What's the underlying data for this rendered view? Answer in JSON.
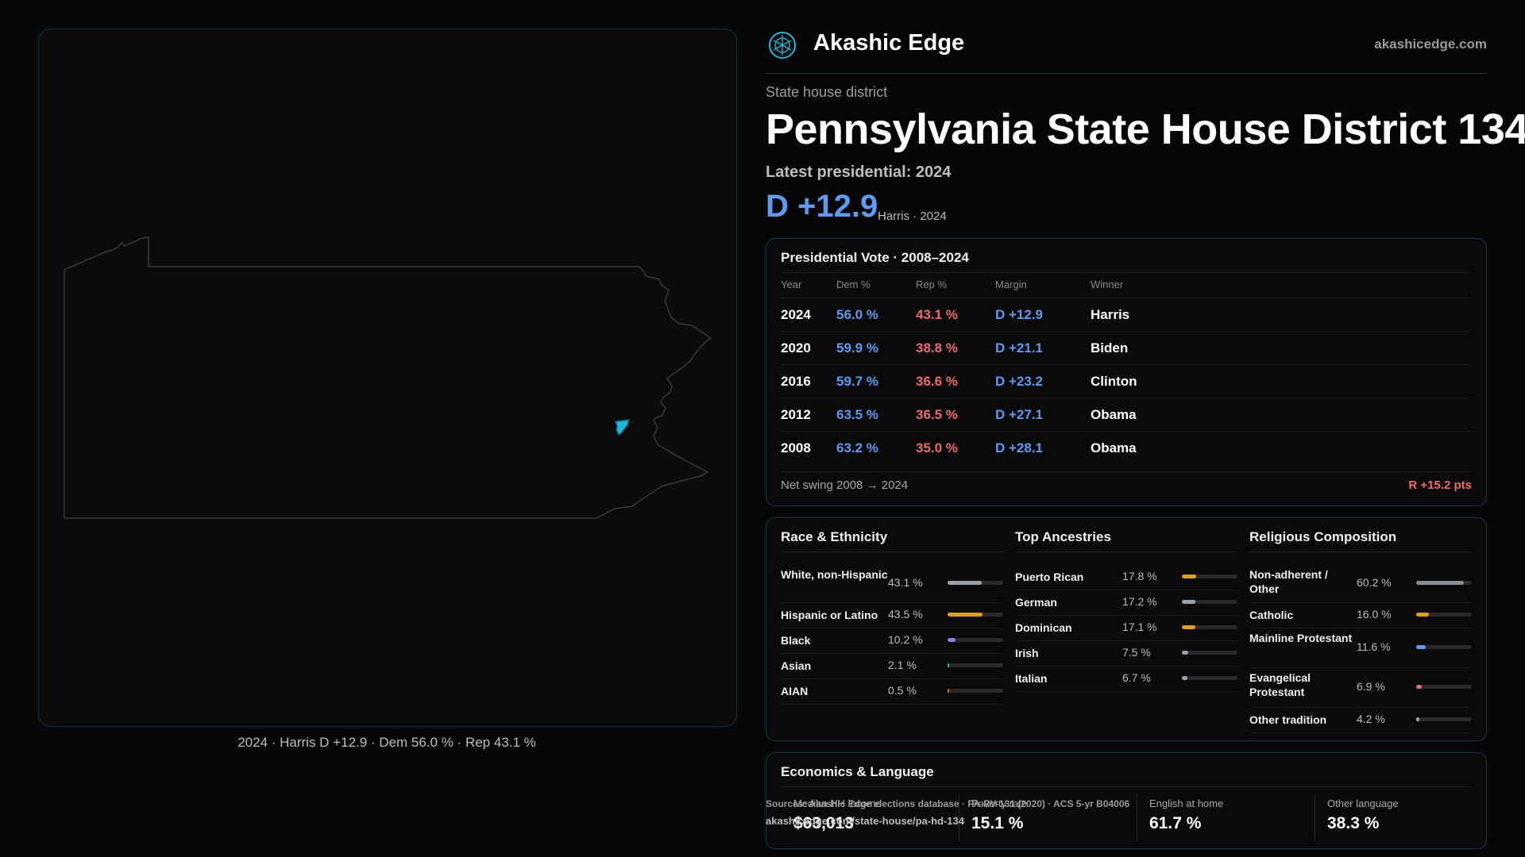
{
  "brand": {
    "name": "Akashic Edge",
    "url": "akashicedge.com",
    "logo_icon": "compass-globe-icon"
  },
  "header": {
    "kicker": "State house district",
    "title": "Pennsylvania State House District 134",
    "latest": "Latest presidential: 2024",
    "margin": "D +12.9",
    "margin_sub": "Harris · 2024"
  },
  "map": {
    "caption": "2024 · Harris D +12.9 · Dem 56.0 % · Rep 43.1 %",
    "highlight_color": "#1fb8d8",
    "outline_color": "#3a3a3a",
    "marker_icon": "district-marker-icon"
  },
  "vote": {
    "title": "Presidential Vote · 2008–2024",
    "headers": [
      "Year",
      "Dem %",
      "Rep %",
      "Margin",
      "Winner"
    ],
    "rows": [
      {
        "year": "2024",
        "dem": "56.0 %",
        "rep": "43.1 %",
        "margin": "D +12.9",
        "winner": "Harris"
      },
      {
        "year": "2020",
        "dem": "59.9 %",
        "rep": "38.8 %",
        "margin": "D +21.1",
        "winner": "Biden"
      },
      {
        "year": "2016",
        "dem": "59.7 %",
        "rep": "36.6 %",
        "margin": "D +23.2",
        "winner": "Clinton"
      },
      {
        "year": "2012",
        "dem": "63.5 %",
        "rep": "36.5 %",
        "margin": "D +27.1",
        "winner": "Obama"
      },
      {
        "year": "2008",
        "dem": "63.2 %",
        "rep": "35.0 %",
        "margin": "D +28.1",
        "winner": "Obama"
      }
    ],
    "net_label": "Net swing 2008 → 2024",
    "net_value": "R +15.2 pts"
  },
  "race": {
    "title": "Race & Ethnicity",
    "items": [
      {
        "label": "White, non-Hispanic",
        "value": "43.1 %",
        "share": 0.431,
        "color": "#9aa3ad"
      },
      {
        "label": "Hispanic or Latino",
        "value": "43.5 %",
        "share": 0.435,
        "color": "#e0a21c"
      },
      {
        "label": "Black",
        "value": "10.2 %",
        "share": 0.102,
        "color": "#8b7cf0"
      },
      {
        "label": "Asian",
        "value": "2.1 %",
        "share": 0.021,
        "color": "#2fc7a3"
      },
      {
        "label": "AIAN",
        "value": "0.5 %",
        "share": 0.005,
        "color": "#d06a3a"
      }
    ]
  },
  "ancestry": {
    "title": "Top Ancestries",
    "items": [
      {
        "label": "Puerto Rican",
        "value": "17.8 %",
        "share": 0.178,
        "color": "#e0a21c"
      },
      {
        "label": "German",
        "value": "17.2 %",
        "share": 0.172,
        "color": "#9aa3ad"
      },
      {
        "label": "Dominican",
        "value": "17.1 %",
        "share": 0.171,
        "color": "#e0a21c"
      },
      {
        "label": "Irish",
        "value": "7.5 %",
        "share": 0.075,
        "color": "#9aa3ad"
      },
      {
        "label": "Italian",
        "value": "6.7 %",
        "share": 0.067,
        "color": "#9aa3ad"
      }
    ]
  },
  "religion": {
    "title": "Religious Composition",
    "items": [
      {
        "label": "Non-adherent / Other",
        "value": "60.2 %",
        "share": 0.602,
        "color": "#8a8f96"
      },
      {
        "label": "Catholic",
        "value": "16.0 %",
        "share": 0.16,
        "color": "#e0a21c"
      },
      {
        "label": "Mainline Protestant",
        "value": "11.6 %",
        "share": 0.116,
        "color": "#5b9cf2"
      },
      {
        "label": "Evangelical Protestant",
        "value": "6.9 %",
        "share": 0.069,
        "color": "#ef6a6a"
      },
      {
        "label": "Other tradition",
        "value": "4.2 %",
        "share": 0.042,
        "color": "#9aa3ad"
      }
    ]
  },
  "economics": {
    "title": "Economics & Language",
    "items": [
      {
        "label": "Median HH income",
        "value": "$63,013"
      },
      {
        "label": "Poverty rate",
        "value": "15.1 %"
      },
      {
        "label": "English at home",
        "value": "61.7 %"
      },
      {
        "label": "Other language",
        "value": "38.3 %"
      }
    ]
  },
  "footer": {
    "source": "Sources: Akashic Edge elections database · PA-RV-131 (2020) · ACS 5-yr B04006",
    "url": "akashicedge.com/state-house/pa-hd-134"
  }
}
